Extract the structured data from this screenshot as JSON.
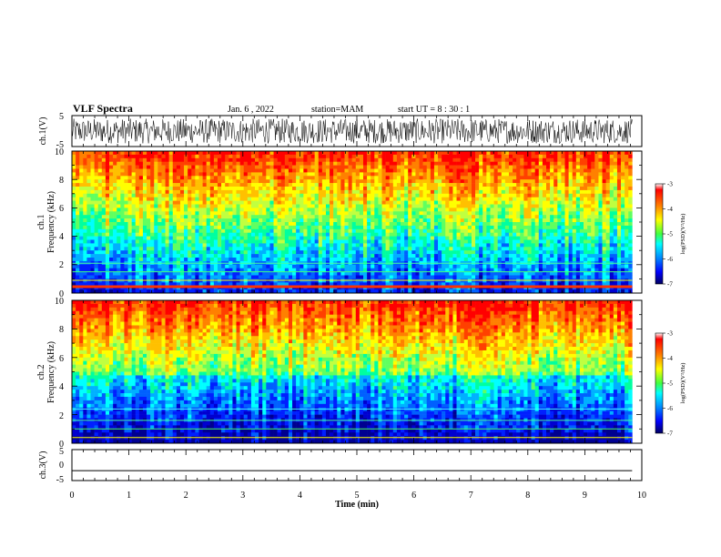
{
  "header": {
    "title": "VLF Spectra",
    "date": "Jan. 6 , 2022",
    "station": "station=MAM",
    "start": "start UT = 8 : 30 : 1"
  },
  "colorbar": {
    "label": "log(PSD)(V²/Hz)",
    "ticks": [
      "-3",
      "-4",
      "-5",
      "-6",
      "-7"
    ],
    "colors": [
      "#ff0000",
      "#ff8000",
      "#ffff00",
      "#80ff80",
      "#00ffff",
      "#0080ff",
      "#0000ff",
      "#000080"
    ]
  },
  "chart_data": [
    {
      "type": "line",
      "id": "ch1-waveform",
      "title": "",
      "xlabel": "",
      "ylabel": "ch.1(V)",
      "xlim": [
        0,
        10
      ],
      "ylim": [
        -5,
        5
      ],
      "yticks": [
        "5",
        "-5"
      ],
      "description": "dense noise-like waveform filling roughly -4 to 4 V over the whole record",
      "data_extent_min": 9.83
    },
    {
      "type": "heatmap",
      "id": "ch1-spectrogram",
      "ylabel": "ch.1\nFrequency (kHz)",
      "xlim": [
        0,
        10
      ],
      "ylim": [
        0,
        10
      ],
      "yticks": [
        "0",
        "2",
        "4",
        "6",
        "8",
        "10"
      ],
      "colorbar_range": [
        -7,
        -3
      ],
      "data_extent_min": 9.83
    },
    {
      "type": "heatmap",
      "id": "ch2-spectrogram",
      "ylabel": "ch.2\nFrequency (kHz)",
      "xlim": [
        0,
        10
      ],
      "ylim": [
        0,
        10
      ],
      "yticks": [
        "0",
        "2",
        "4",
        "6",
        "8",
        "10"
      ],
      "colorbar_range": [
        -7,
        -3
      ],
      "data_extent_min": 9.83
    },
    {
      "type": "line",
      "id": "ch3-waveform",
      "ylabel": "ch.3(V)",
      "xlim": [
        0,
        10
      ],
      "ylim": [
        -5,
        5
      ],
      "yticks": [
        "5",
        "0",
        "-5"
      ],
      "constant_value": -2.2,
      "xlabel": "Time (min)",
      "xticks": [
        "0",
        "1",
        "2",
        "3",
        "4",
        "5",
        "6",
        "7",
        "8",
        "9",
        "10"
      ]
    }
  ]
}
